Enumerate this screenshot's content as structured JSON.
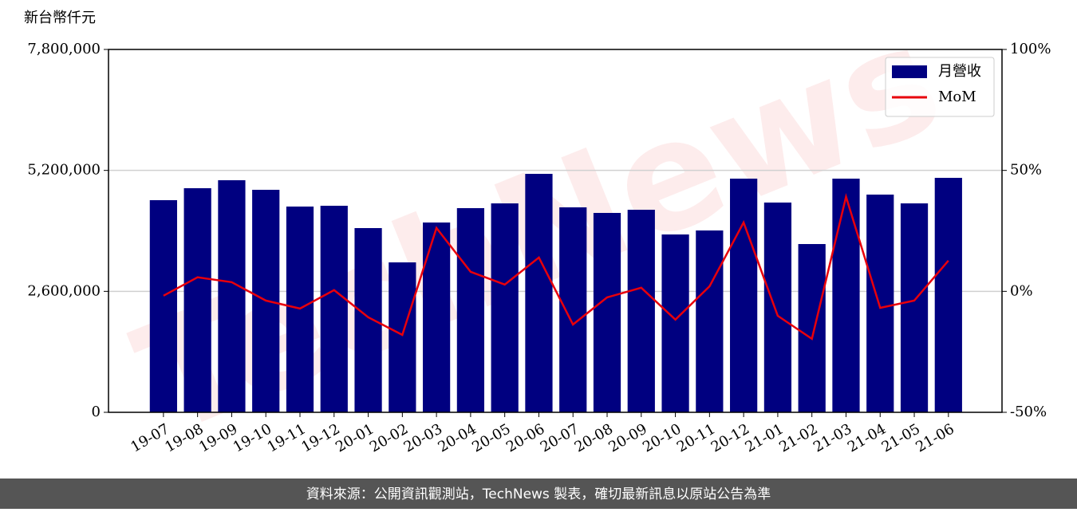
{
  "chart_data": {
    "type": "bar_line",
    "y_label": "新台幣仟元",
    "categories": [
      "19-07",
      "19-08",
      "19-09",
      "19-10",
      "19-11",
      "19-12",
      "20-01",
      "20-02",
      "20-03",
      "20-04",
      "20-05",
      "20-06",
      "20-07",
      "20-08",
      "20-09",
      "20-10",
      "20-11",
      "20-12",
      "21-01",
      "21-02",
      "21-03",
      "21-04",
      "21-05",
      "21-06"
    ],
    "series": [
      {
        "name": "月營收",
        "type": "bar",
        "color": "#000080",
        "values": [
          4560000,
          4817000,
          4989000,
          4783000,
          4423000,
          4440000,
          3960000,
          3223000,
          4080000,
          4389000,
          4491000,
          5126000,
          4406000,
          4286000,
          4354000,
          3823000,
          3909000,
          5023000,
          4509000,
          3617000,
          5023000,
          4680000,
          4491000,
          5040000
        ]
      },
      {
        "name": "MoM",
        "type": "line",
        "axis": "y2",
        "color": "#e8000b",
        "values": [
          -1.8,
          5.8,
          3.8,
          -3.8,
          -7.1,
          0.5,
          -10.7,
          -18.0,
          26.2,
          8.1,
          2.8,
          14.0,
          -13.7,
          -2.5,
          1.5,
          -11.7,
          2.1,
          28.5,
          -10.1,
          -19.6,
          39.1,
          -6.8,
          -3.8,
          12.7
        ]
      }
    ],
    "ylim": [
      0,
      7800000
    ],
    "yticks": [
      0,
      {
        "value": 2600000,
        "label": "2,600,000"
      },
      {
        "value": 5200000,
        "label": "5,200,000"
      },
      {
        "value": 7800000,
        "label": "7,800,000"
      }
    ],
    "y2lim": [
      -50,
      100
    ],
    "y2ticks": [
      {
        "value": -50,
        "label": "-50%"
      },
      {
        "value": 0,
        "label": "0%"
      },
      {
        "value": 50,
        "label": "50%"
      },
      {
        "value": 100,
        "label": "100%"
      }
    ],
    "grid": true,
    "legend": "upper right",
    "watermark": "TechNews",
    "footer": "資料來源：公開資訊觀測站，TechNews 製表，確切最新訊息以原站公告為準"
  }
}
